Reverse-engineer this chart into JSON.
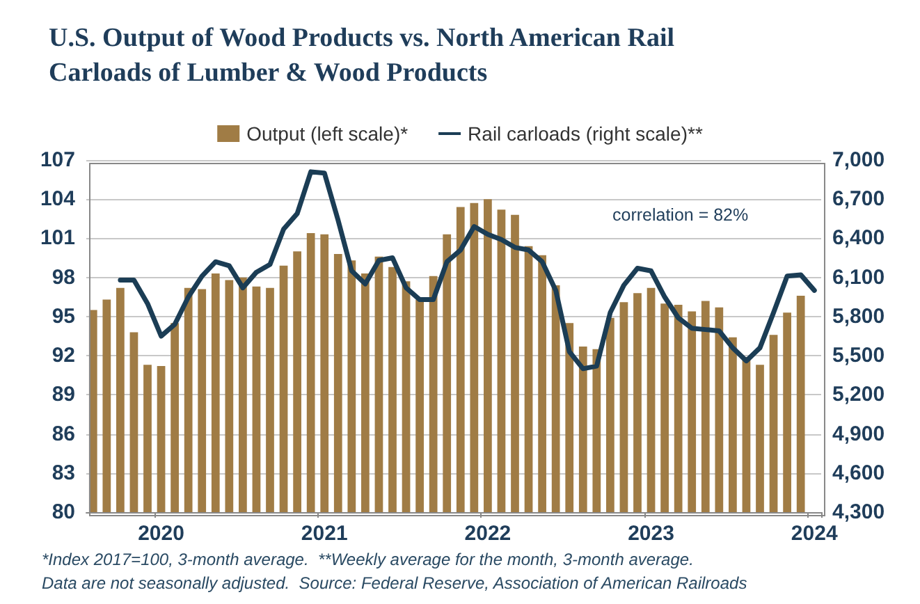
{
  "chart_data": {
    "type": "bar",
    "title": "U.S. Output of Wood Products vs. North American Rail Carloads of Lumber & Wood Products",
    "categories": [
      null,
      null,
      null,
      null,
      null,
      "2020",
      null,
      null,
      null,
      null,
      null,
      null,
      null,
      null,
      null,
      null,
      null,
      "2021",
      null,
      null,
      null,
      null,
      null,
      null,
      null,
      null,
      null,
      null,
      null,
      "2022",
      null,
      null,
      null,
      null,
      null,
      null,
      null,
      null,
      null,
      null,
      null,
      "2023",
      null,
      null,
      null,
      null,
      null,
      null,
      null,
      null,
      null,
      null,
      null,
      "2024"
    ],
    "series": [
      {
        "name": "Output (left scale)*",
        "color": "#a07c45",
        "values": [
          95.5,
          96.3,
          97.2,
          93.8,
          91.3,
          91.2,
          94.5,
          97.2,
          97.1,
          98.3,
          97.8,
          98.0,
          97.3,
          97.2,
          98.9,
          100.0,
          101.4,
          101.3,
          99.8,
          99.3,
          98.3,
          99.6,
          98.8,
          97.7,
          96.3,
          98.1,
          101.3,
          103.4,
          103.7,
          104.0,
          103.2,
          102.8,
          100.4,
          99.7,
          97.4,
          94.5,
          92.7,
          92.5,
          94.9,
          96.1,
          96.8,
          97.2,
          96.0,
          95.9,
          95.4,
          96.2,
          95.7,
          93.4,
          91.9,
          91.3,
          93.6,
          95.3,
          96.6,
          null
        ]
      },
      {
        "name": "Rail carloads (right scale)**",
        "type": "line",
        "axis": "y2",
        "color": "#1b3d55",
        "values": [
          null,
          null,
          6080,
          6080,
          5900,
          5650,
          5740,
          5950,
          6110,
          6220,
          6190,
          6020,
          6140,
          6200,
          6470,
          6590,
          6910,
          6900,
          6540,
          6150,
          6050,
          6230,
          6250,
          6020,
          5930,
          5930,
          6220,
          6310,
          6490,
          6430,
          6390,
          6330,
          6310,
          6220,
          6000,
          5530,
          5400,
          5420,
          5830,
          6040,
          6170,
          6150,
          5950,
          5790,
          5710,
          5700,
          5690,
          5560,
          5460,
          5560,
          5830,
          6110,
          6120,
          6000
        ]
      }
    ],
    "ylim": [
      80,
      107
    ],
    "yticks": [
      80,
      83,
      86,
      89,
      92,
      95,
      98,
      101,
      104,
      107
    ],
    "y2lim": [
      4300,
      7000
    ],
    "y2ticks": [
      {
        "value": 4300,
        "label": "4,300"
      },
      {
        "value": 4600,
        "label": "4,600"
      },
      {
        "value": 4900,
        "label": "4,900"
      },
      {
        "value": 5200,
        "label": "5,200"
      },
      {
        "value": 5500,
        "label": "5,500"
      },
      {
        "value": 5800,
        "label": "5,800"
      },
      {
        "value": 6100,
        "label": "6,100"
      },
      {
        "value": 6400,
        "label": "6,400"
      },
      {
        "value": 6700,
        "label": "6,700"
      },
      {
        "value": 7000,
        "label": "7,000"
      }
    ],
    "grid": "y",
    "legend": "top",
    "marker": "none",
    "line_style": "solid",
    "annotations": [
      "correlation = 82%",
      "*Index 2017=100, 3-month average.  **Weekly average for the month, 3-month average.",
      "Data are not seasonally adjusted.  Source: Federal Reserve, Association of American Railroads"
    ]
  }
}
